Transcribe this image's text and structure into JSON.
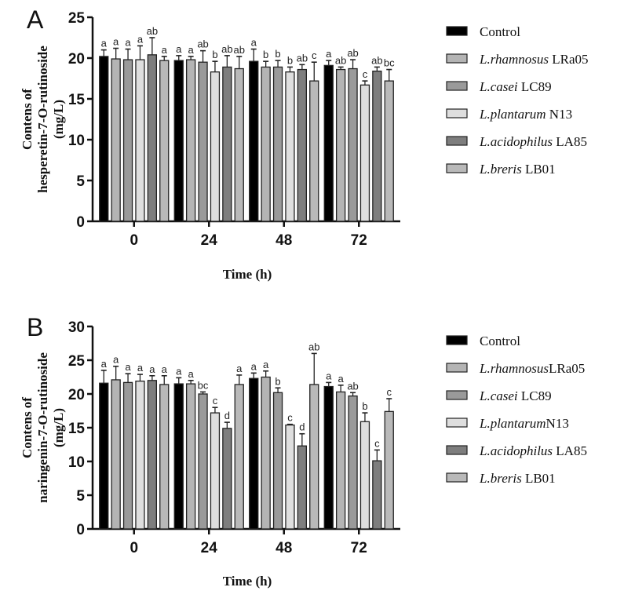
{
  "chart_data": [
    {
      "type": "bar",
      "panel": "A",
      "title": "",
      "xlabel": "Time (h)",
      "ylabel_lines": [
        "Contens of",
        "hesperetin-7-O-rutinoside",
        "(mg/L)"
      ],
      "ylim": [
        0,
        25
      ],
      "yticks": [
        0,
        5,
        10,
        15,
        20,
        25
      ],
      "categories": [
        "0",
        "24",
        "48",
        "72"
      ],
      "legend_position": "right",
      "series": [
        {
          "name": "Control",
          "italic": "",
          "plain": "Control",
          "color": "#000000",
          "values": [
            20.2,
            19.7,
            19.6,
            19.1
          ],
          "errors": [
            0.8,
            0.6,
            1.5,
            0.6
          ],
          "letters": [
            "a",
            "a",
            "a",
            "a"
          ]
        },
        {
          "name": "L.rhamnosus LRa05",
          "italic": "L.rhamnosus",
          "plain": " LRa05",
          "color": "#b4b4b4",
          "values": [
            19.9,
            19.8,
            18.9,
            18.6
          ],
          "errors": [
            1.3,
            0.4,
            0.7,
            0.3
          ],
          "letters": [
            "a",
            "a",
            "b",
            "ab"
          ]
        },
        {
          "name": "L.casei LC89",
          "italic": "L.casei",
          "plain": " LC89",
          "color": "#9a9a9a",
          "values": [
            19.8,
            19.5,
            18.9,
            18.7
          ],
          "errors": [
            1.3,
            1.4,
            0.8,
            1.1
          ],
          "letters": [
            "a",
            "ab",
            "b",
            "ab"
          ]
        },
        {
          "name": "L.plantarum N13",
          "italic": "L.plantarum",
          "plain": " N13",
          "color": "#dedede",
          "values": [
            19.8,
            18.3,
            18.3,
            16.7
          ],
          "errors": [
            1.7,
            1.3,
            0.6,
            0.5
          ],
          "letters": [
            "a",
            "b",
            "b",
            "c"
          ]
        },
        {
          "name": "L.acidophilus LA85",
          "italic": "L.acidophilus",
          "plain": " LA85",
          "color": "#7e7e7e",
          "values": [
            20.4,
            18.9,
            18.6,
            18.4
          ],
          "errors": [
            2.1,
            1.4,
            0.6,
            0.5
          ],
          "letters": [
            "ab",
            "ab",
            "ab",
            "ab"
          ]
        },
        {
          "name": "L.breris LB01",
          "italic": "L.breris",
          "plain": " LB01",
          "color": "#b9b9b9",
          "values": [
            19.7,
            18.7,
            17.2,
            17.2
          ],
          "errors": [
            0.5,
            1.5,
            2.3,
            1.4
          ],
          "letters": [
            "a",
            "ab",
            "c",
            "bc"
          ]
        }
      ]
    },
    {
      "type": "bar",
      "panel": "B",
      "title": "",
      "xlabel": "Time (h)",
      "ylabel_lines": [
        "Contens of",
        "naringenin-7-O-rutinoside",
        "(mg/L)"
      ],
      "ylim": [
        0,
        30
      ],
      "yticks": [
        0,
        5,
        10,
        15,
        20,
        25,
        30
      ],
      "categories": [
        "0",
        "24",
        "48",
        "72"
      ],
      "legend_position": "right",
      "series": [
        {
          "name": "Control",
          "italic": "",
          "plain": "Control",
          "color": "#000000",
          "values": [
            21.6,
            21.5,
            22.3,
            21.1
          ],
          "errors": [
            1.9,
            0.9,
            0.8,
            0.6
          ],
          "letters": [
            "a",
            "a",
            "a",
            "a"
          ]
        },
        {
          "name": "L.rhamnosus LRa05",
          "italic": "L.rhamnosus",
          "plain": "LRa05",
          "color": "#b4b4b4",
          "values": [
            22.1,
            21.5,
            22.5,
            20.3
          ],
          "errors": [
            2.0,
            0.5,
            0.9,
            1.0
          ],
          "letters": [
            "a",
            "a",
            "a",
            "a"
          ]
        },
        {
          "name": "L.casei LC89",
          "italic": "L.casei",
          "plain": " LC89",
          "color": "#9a9a9a",
          "values": [
            21.7,
            20.0,
            20.2,
            19.7
          ],
          "errors": [
            1.3,
            0.3,
            0.7,
            0.5
          ],
          "letters": [
            "a",
            "bc",
            "b",
            "ab"
          ]
        },
        {
          "name": "L.plantarum N13",
          "italic": "L.plantarum",
          "plain": "N13",
          "color": "#dedede",
          "values": [
            21.9,
            17.2,
            15.4,
            15.9
          ],
          "errors": [
            1.0,
            0.8,
            0.1,
            1.3
          ],
          "letters": [
            "a",
            "c",
            "c",
            "b"
          ]
        },
        {
          "name": "L.acidophilus LA85",
          "italic": "L.acidophilus",
          "plain": " LA85",
          "color": "#7e7e7e",
          "values": [
            22.0,
            14.9,
            12.3,
            10.1
          ],
          "errors": [
            0.7,
            0.9,
            1.8,
            1.6
          ],
          "letters": [
            "a",
            "d",
            "d",
            "c"
          ]
        },
        {
          "name": "L.breris LB01",
          "italic": "L.breris",
          "plain": " LB01",
          "color": "#b9b9b9",
          "values": [
            21.4,
            21.4,
            21.4,
            17.4
          ],
          "errors": [
            1.3,
            1.4,
            4.6,
            1.9
          ],
          "letters": [
            "a",
            "a",
            "ab",
            "c"
          ]
        }
      ]
    }
  ]
}
